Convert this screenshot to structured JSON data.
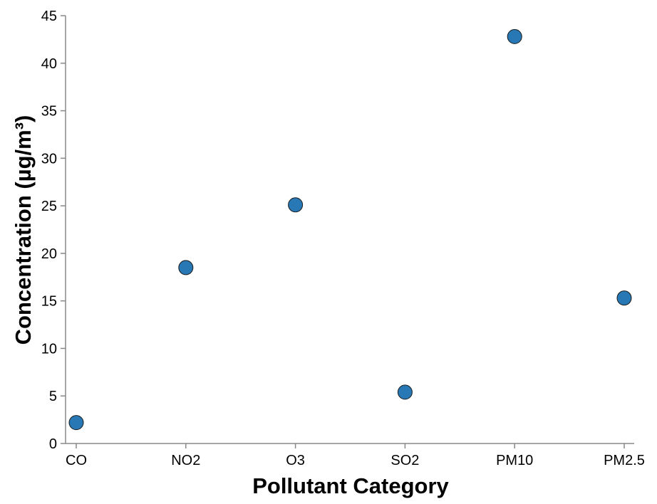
{
  "chart_data": {
    "type": "scatter",
    "title": "",
    "xlabel": "Pollutant Category",
    "ylabel": "Concentration (µg/m³)",
    "categories": [
      "CO",
      "NO2",
      "O3",
      "SO2",
      "PM10",
      "PM2.5"
    ],
    "values": [
      2.2,
      18.5,
      25.1,
      5.4,
      42.8,
      15.3
    ],
    "ylim": [
      0,
      45
    ],
    "yticks": [
      "0",
      "5",
      "10",
      "15",
      "20",
      "25",
      "30",
      "35",
      "40",
      "45"
    ],
    "grid": false,
    "legend": "none",
    "colors": {
      "point_fill": "#2878b5",
      "point_stroke": "#1a1a1a",
      "axis": "#888888"
    }
  }
}
